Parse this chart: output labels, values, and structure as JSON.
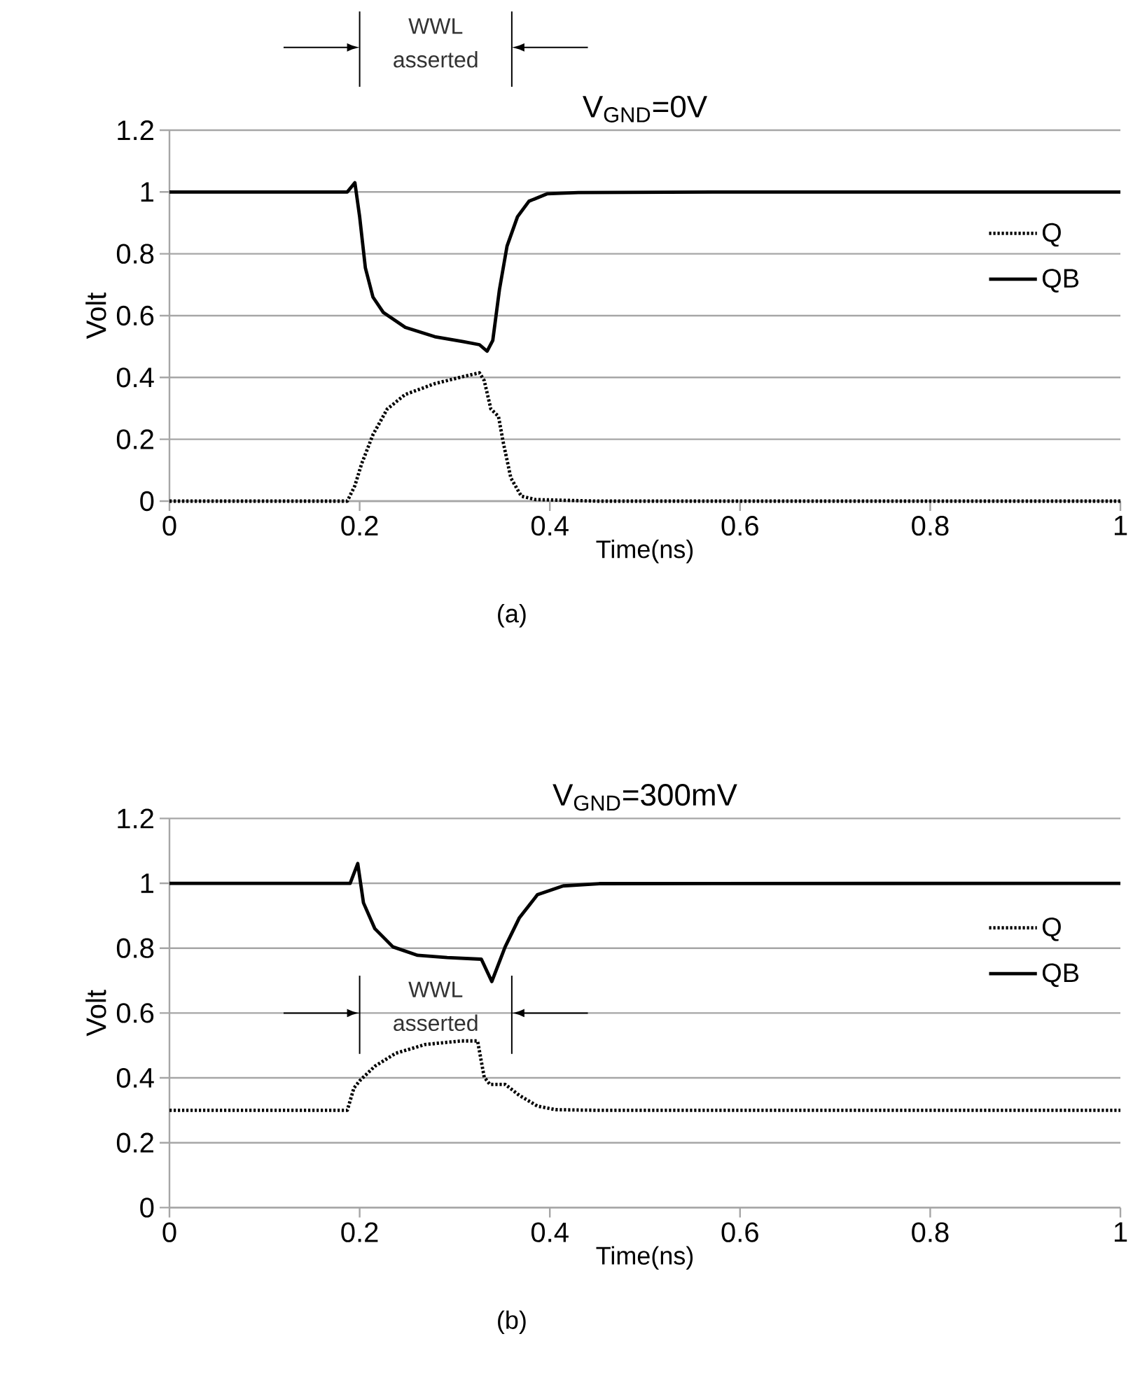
{
  "chart_data": [
    {
      "type": "line",
      "title": "V$_{GND}$=0V",
      "xlabel": "Time(ns)",
      "ylabel": "Volt",
      "annotations": [
        "WWL asserted",
        "(a)"
      ],
      "xlim": [
        0,
        1
      ],
      "ylim": [
        0,
        1.2
      ],
      "xticks": [
        0,
        0.2,
        0.4,
        0.6,
        0.8,
        1
      ],
      "yticks": [
        0,
        0.2,
        0.4,
        0.6,
        0.8,
        1,
        1.2
      ],
      "grid": "y",
      "legend": "right",
      "marker": "none",
      "series": [
        {
          "name": "Q",
          "color": "#000000",
          "line_style": "dotted",
          "x": [
            0,
            0.187,
            0.195,
            0.202,
            0.214,
            0.229,
            0.248,
            0.279,
            0.309,
            0.326,
            0.331,
            0.338,
            0.346,
            0.351,
            0.359,
            0.37,
            0.385,
            0.45,
            1
          ],
          "values": [
            0,
            0,
            0.05,
            0.12,
            0.215,
            0.298,
            0.345,
            0.38,
            0.403,
            0.415,
            0.39,
            0.298,
            0.274,
            0.19,
            0.075,
            0.016,
            0.005,
            0,
            0
          ]
        },
        {
          "name": "QB",
          "color": "#000000",
          "line_style": "solid",
          "x": [
            0,
            0.187,
            0.195,
            0.2,
            0.206,
            0.214,
            0.225,
            0.248,
            0.279,
            0.309,
            0.326,
            0.334,
            0.34,
            0.347,
            0.355,
            0.366,
            0.378,
            0.397,
            0.43,
            0.6,
            1
          ],
          "values": [
            1,
            1,
            1.03,
            0.92,
            0.755,
            0.66,
            0.61,
            0.562,
            0.532,
            0.516,
            0.506,
            0.485,
            0.52,
            0.684,
            0.825,
            0.92,
            0.97,
            0.994,
            0.998,
            1,
            1
          ]
        }
      ]
    },
    {
      "type": "line",
      "title": "V$_{GND}$=300mV",
      "xlabel": "Time(ns)",
      "ylabel": "Volt",
      "annotations": [
        "WWL asserted",
        "(b)"
      ],
      "xlim": [
        0,
        1
      ],
      "ylim": [
        0,
        1.2
      ],
      "xticks": [
        0,
        0.2,
        0.4,
        0.6,
        0.8,
        1
      ],
      "yticks": [
        0,
        0.2,
        0.4,
        0.6,
        0.8,
        1,
        1.2
      ],
      "grid": "y",
      "legend": "right",
      "marker": "none",
      "series": [
        {
          "name": "Q",
          "color": "#000000",
          "line_style": "dotted",
          "x": [
            0,
            0.187,
            0.194,
            0.2,
            0.216,
            0.238,
            0.269,
            0.307,
            0.324,
            0.331,
            0.337,
            0.353,
            0.368,
            0.387,
            0.406,
            0.45,
            1
          ],
          "values": [
            0.3,
            0.3,
            0.369,
            0.391,
            0.436,
            0.476,
            0.503,
            0.514,
            0.514,
            0.402,
            0.38,
            0.38,
            0.346,
            0.313,
            0.302,
            0.3,
            0.3
          ]
        },
        {
          "name": "QB",
          "color": "#000000",
          "line_style": "solid",
          "x": [
            0,
            0.19,
            0.198,
            0.204,
            0.216,
            0.235,
            0.261,
            0.292,
            0.328,
            0.339,
            0.353,
            0.368,
            0.387,
            0.414,
            0.452,
            1
          ],
          "values": [
            1,
            1,
            1.061,
            0.94,
            0.86,
            0.804,
            0.778,
            0.771,
            0.766,
            0.697,
            0.804,
            0.894,
            0.965,
            0.992,
            0.999,
            1
          ]
        }
      ]
    }
  ]
}
